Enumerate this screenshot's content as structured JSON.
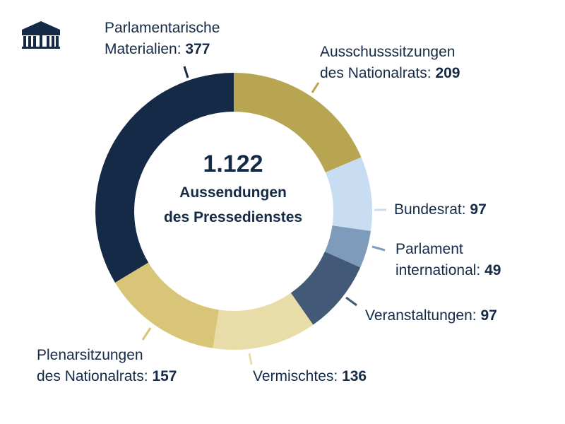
{
  "chart_data": {
    "type": "pie",
    "subtype": "donut",
    "total_label": "1.122",
    "center_lines": [
      "Aussendungen",
      "des Pressedienstes"
    ],
    "slices": [
      {
        "name": "Ausschusssitzungen des Nationalrats",
        "line1": "Ausschusssitzungen",
        "line2": "des Nationalrats:",
        "value": 209,
        "value_label": "209",
        "color": "#b8a552"
      },
      {
        "name": "Bundesrat",
        "line1": "Bundesrat:",
        "value": 97,
        "value_label": "97",
        "color": "#c9ddf2"
      },
      {
        "name": "Parlament international",
        "line1": "Parlament",
        "line2": "international:",
        "value": 49,
        "value_label": "49",
        "color": "#7f9bbb"
      },
      {
        "name": "Veranstaltungen",
        "line1": "Veranstaltungen:",
        "value": 97,
        "value_label": "97",
        "color": "#425a77"
      },
      {
        "name": "Vermischtes",
        "line1": "Vermischtes:",
        "value": 136,
        "value_label": "136",
        "color": "#e8dda8"
      },
      {
        "name": "Plenarsitzungen des Nationalrats",
        "line1": "Plenarsitzungen",
        "line2": "des Nationalrats:",
        "value": 157,
        "value_label": "157",
        "color": "#d9c577"
      },
      {
        "name": "Parlamentarische Materialien",
        "line1": "Parlamentarische",
        "line2": "Materialien:",
        "value": 377,
        "value_label": "377",
        "color": "#152a47"
      }
    ]
  },
  "logo": {
    "name": "parliament-logo",
    "color": "#152a47"
  }
}
